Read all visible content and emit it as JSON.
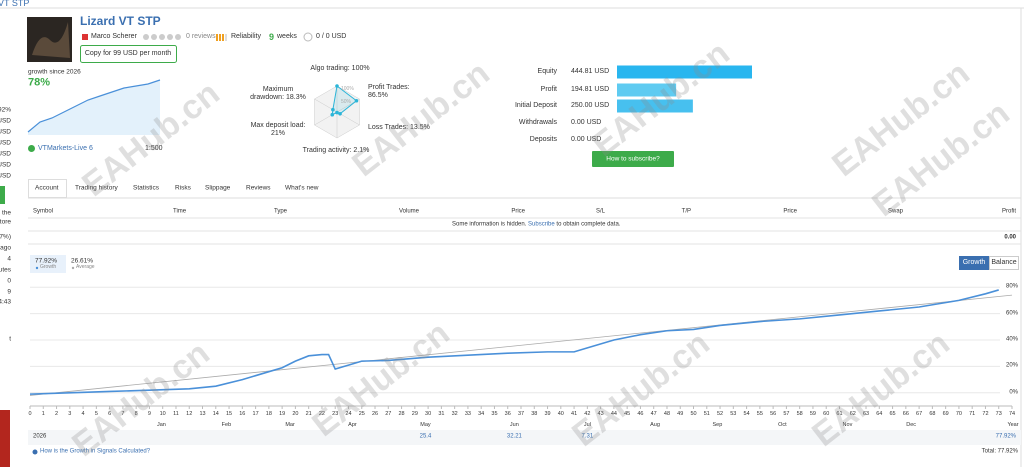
{
  "header": {
    "breadcrumb": "VT STP",
    "title": "Lizard VT STP",
    "author": "Marco Scherer",
    "reviews": "0 reviews",
    "reliability": "Reliability",
    "weeks_value": "9",
    "weeks": "weeks",
    "subscribers": "0 / 0 USD",
    "copy_button": "Copy for 99 USD per month"
  },
  "summary": {
    "growth_caption": "growth since 2026",
    "growth": "78%",
    "broker": "VTMarkets-Live 6",
    "leverage": "1:500"
  },
  "sidebar": [
    "92%",
    "USD",
    "USD",
    "USD",
    "USD",
    "USD",
    "USD",
    "l the",
    "store",
    "07%)",
    "ago",
    "4",
    "utes",
    "0",
    "9",
    "4:43",
    "t"
  ],
  "radar": {
    "rings": [
      {
        "value": 50,
        "label": "50%"
      },
      {
        "value": 100,
        "label": "100%"
      }
    ],
    "axes": [
      {
        "label": "Algo trading:",
        "value": 100,
        "value_label": "100%"
      },
      {
        "label": "Profit Trades:",
        "value": 86.5,
        "value_label": "86.5%"
      },
      {
        "label": "Loss Trades:",
        "value": 13.5,
        "value_label": "13.5%"
      },
      {
        "label": "Trading activity:",
        "value": 2.1,
        "value_label": "2.1%"
      },
      {
        "label": "Max deposit load:",
        "value": 21,
        "value_label": "21%"
      },
      {
        "label": "Maximum drawdown:",
        "value": 18.3,
        "value_label": "18.3%"
      }
    ],
    "color": "#2bb5d8"
  },
  "balance": {
    "rows": [
      {
        "label": "Equity",
        "value": 444.81,
        "value_label": "444.81 USD",
        "color": "#29b6ef"
      },
      {
        "label": "Profit",
        "value": 194.81,
        "value_label": "194.81 USD",
        "color": "#5fcbf1"
      },
      {
        "label": "Initial Deposit",
        "value": 250.0,
        "value_label": "250.00 USD",
        "color": "#47c0ef"
      },
      {
        "label": "Withdrawals",
        "value": 0.0,
        "value_label": "0.00 USD",
        "color": "#47c0ef"
      },
      {
        "label": "Deposits",
        "value": 0.0,
        "value_label": "0.00 USD",
        "color": "#47c0ef"
      }
    ],
    "button": "How to subscribe?"
  },
  "tabs": [
    "Account",
    "Trading history",
    "Statistics",
    "Risks",
    "Slippage",
    "Reviews",
    "What's new"
  ],
  "table": {
    "columns": [
      "Symbol",
      "Time",
      "Type",
      "Volume",
      "Price",
      "S/L",
      "T/P",
      "Price",
      "Swap",
      "Profit"
    ],
    "notice": [
      "Some information is hidden. ",
      "Subscribe",
      " to obtain complete data."
    ],
    "total": "0.00"
  },
  "growth_chart": {
    "type": "line",
    "legend_values": [
      "77.92%",
      "26.61%"
    ],
    "buttons": [
      "Growth",
      "Balance"
    ],
    "series": [
      {
        "name": "Growth",
        "color": "#4a90d9",
        "x": [
          0,
          3,
          6,
          9,
          12,
          14,
          16,
          18,
          19,
          20,
          21,
          22,
          22.5,
          23,
          24,
          25,
          27,
          30,
          33,
          36,
          39,
          41,
          42,
          44,
          46,
          48,
          50,
          52,
          55,
          58,
          61,
          64,
          67,
          70,
          72,
          73
        ],
        "values": [
          -1,
          0,
          1,
          2,
          3,
          5,
          10,
          16,
          19,
          24,
          28,
          29,
          29,
          18,
          21,
          24,
          24.5,
          27,
          28.5,
          30,
          31,
          31,
          34,
          40,
          44,
          47,
          48,
          51,
          54,
          56,
          59,
          62,
          65,
          70,
          75,
          77.92
        ]
      },
      {
        "name": "Average",
        "color": "#aaaaaa",
        "x": [
          0,
          74
        ],
        "values": [
          -2,
          74
        ]
      }
    ],
    "xlim": [
      0,
      74
    ],
    "ylim": [
      -10,
      90
    ],
    "xticks": [
      0,
      1,
      2,
      3,
      4,
      5,
      6,
      7,
      8,
      9,
      10,
      11,
      12,
      13,
      14,
      15,
      16,
      17,
      18,
      19,
      20,
      21,
      22,
      23,
      24,
      25,
      26,
      27,
      28,
      29,
      30,
      31,
      32,
      33,
      34,
      35,
      36,
      37,
      38,
      39,
      40,
      41,
      42,
      43,
      44,
      45,
      46,
      47,
      48,
      49,
      50,
      51,
      52,
      53,
      54,
      55,
      56,
      57,
      58,
      59,
      60,
      61,
      62,
      63,
      64,
      65,
      66,
      67,
      68,
      69,
      70,
      71,
      72,
      73,
      74
    ],
    "yticks": [
      {
        "value": 0,
        "label": "0%"
      },
      {
        "value": 20,
        "label": "20%"
      },
      {
        "value": 40,
        "label": "40%"
      },
      {
        "value": 60,
        "label": "60%"
      },
      {
        "value": 80,
        "label": "80%"
      }
    ],
    "month_ticks": [
      {
        "value": 9.9,
        "label": "Jan"
      },
      {
        "value": 14.8,
        "label": "Feb"
      },
      {
        "value": 19.6,
        "label": "Mar"
      },
      {
        "value": 24.3,
        "label": "Apr"
      },
      {
        "value": 29.8,
        "label": "May"
      },
      {
        "value": 36.5,
        "label": "Jun"
      },
      {
        "value": 42,
        "label": "Jul"
      },
      {
        "value": 47.1,
        "label": "Aug"
      },
      {
        "value": 51.8,
        "label": "Sep"
      },
      {
        "value": 56.7,
        "label": "Oct"
      },
      {
        "value": 61.6,
        "label": "Nov"
      },
      {
        "value": 66.4,
        "label": "Dec"
      }
    ],
    "year_header": "Year",
    "year": "2026",
    "monthly_results": [
      null,
      null,
      null,
      null,
      25.4,
      32.21,
      7.31,
      null,
      null,
      null,
      null,
      null
    ],
    "year_total": "77.92%",
    "grid": true
  },
  "footer": {
    "link": "How is the Growth in Signals Calculated?",
    "total": "Total: 77.92%"
  },
  "watermark": "EAHub.cn"
}
